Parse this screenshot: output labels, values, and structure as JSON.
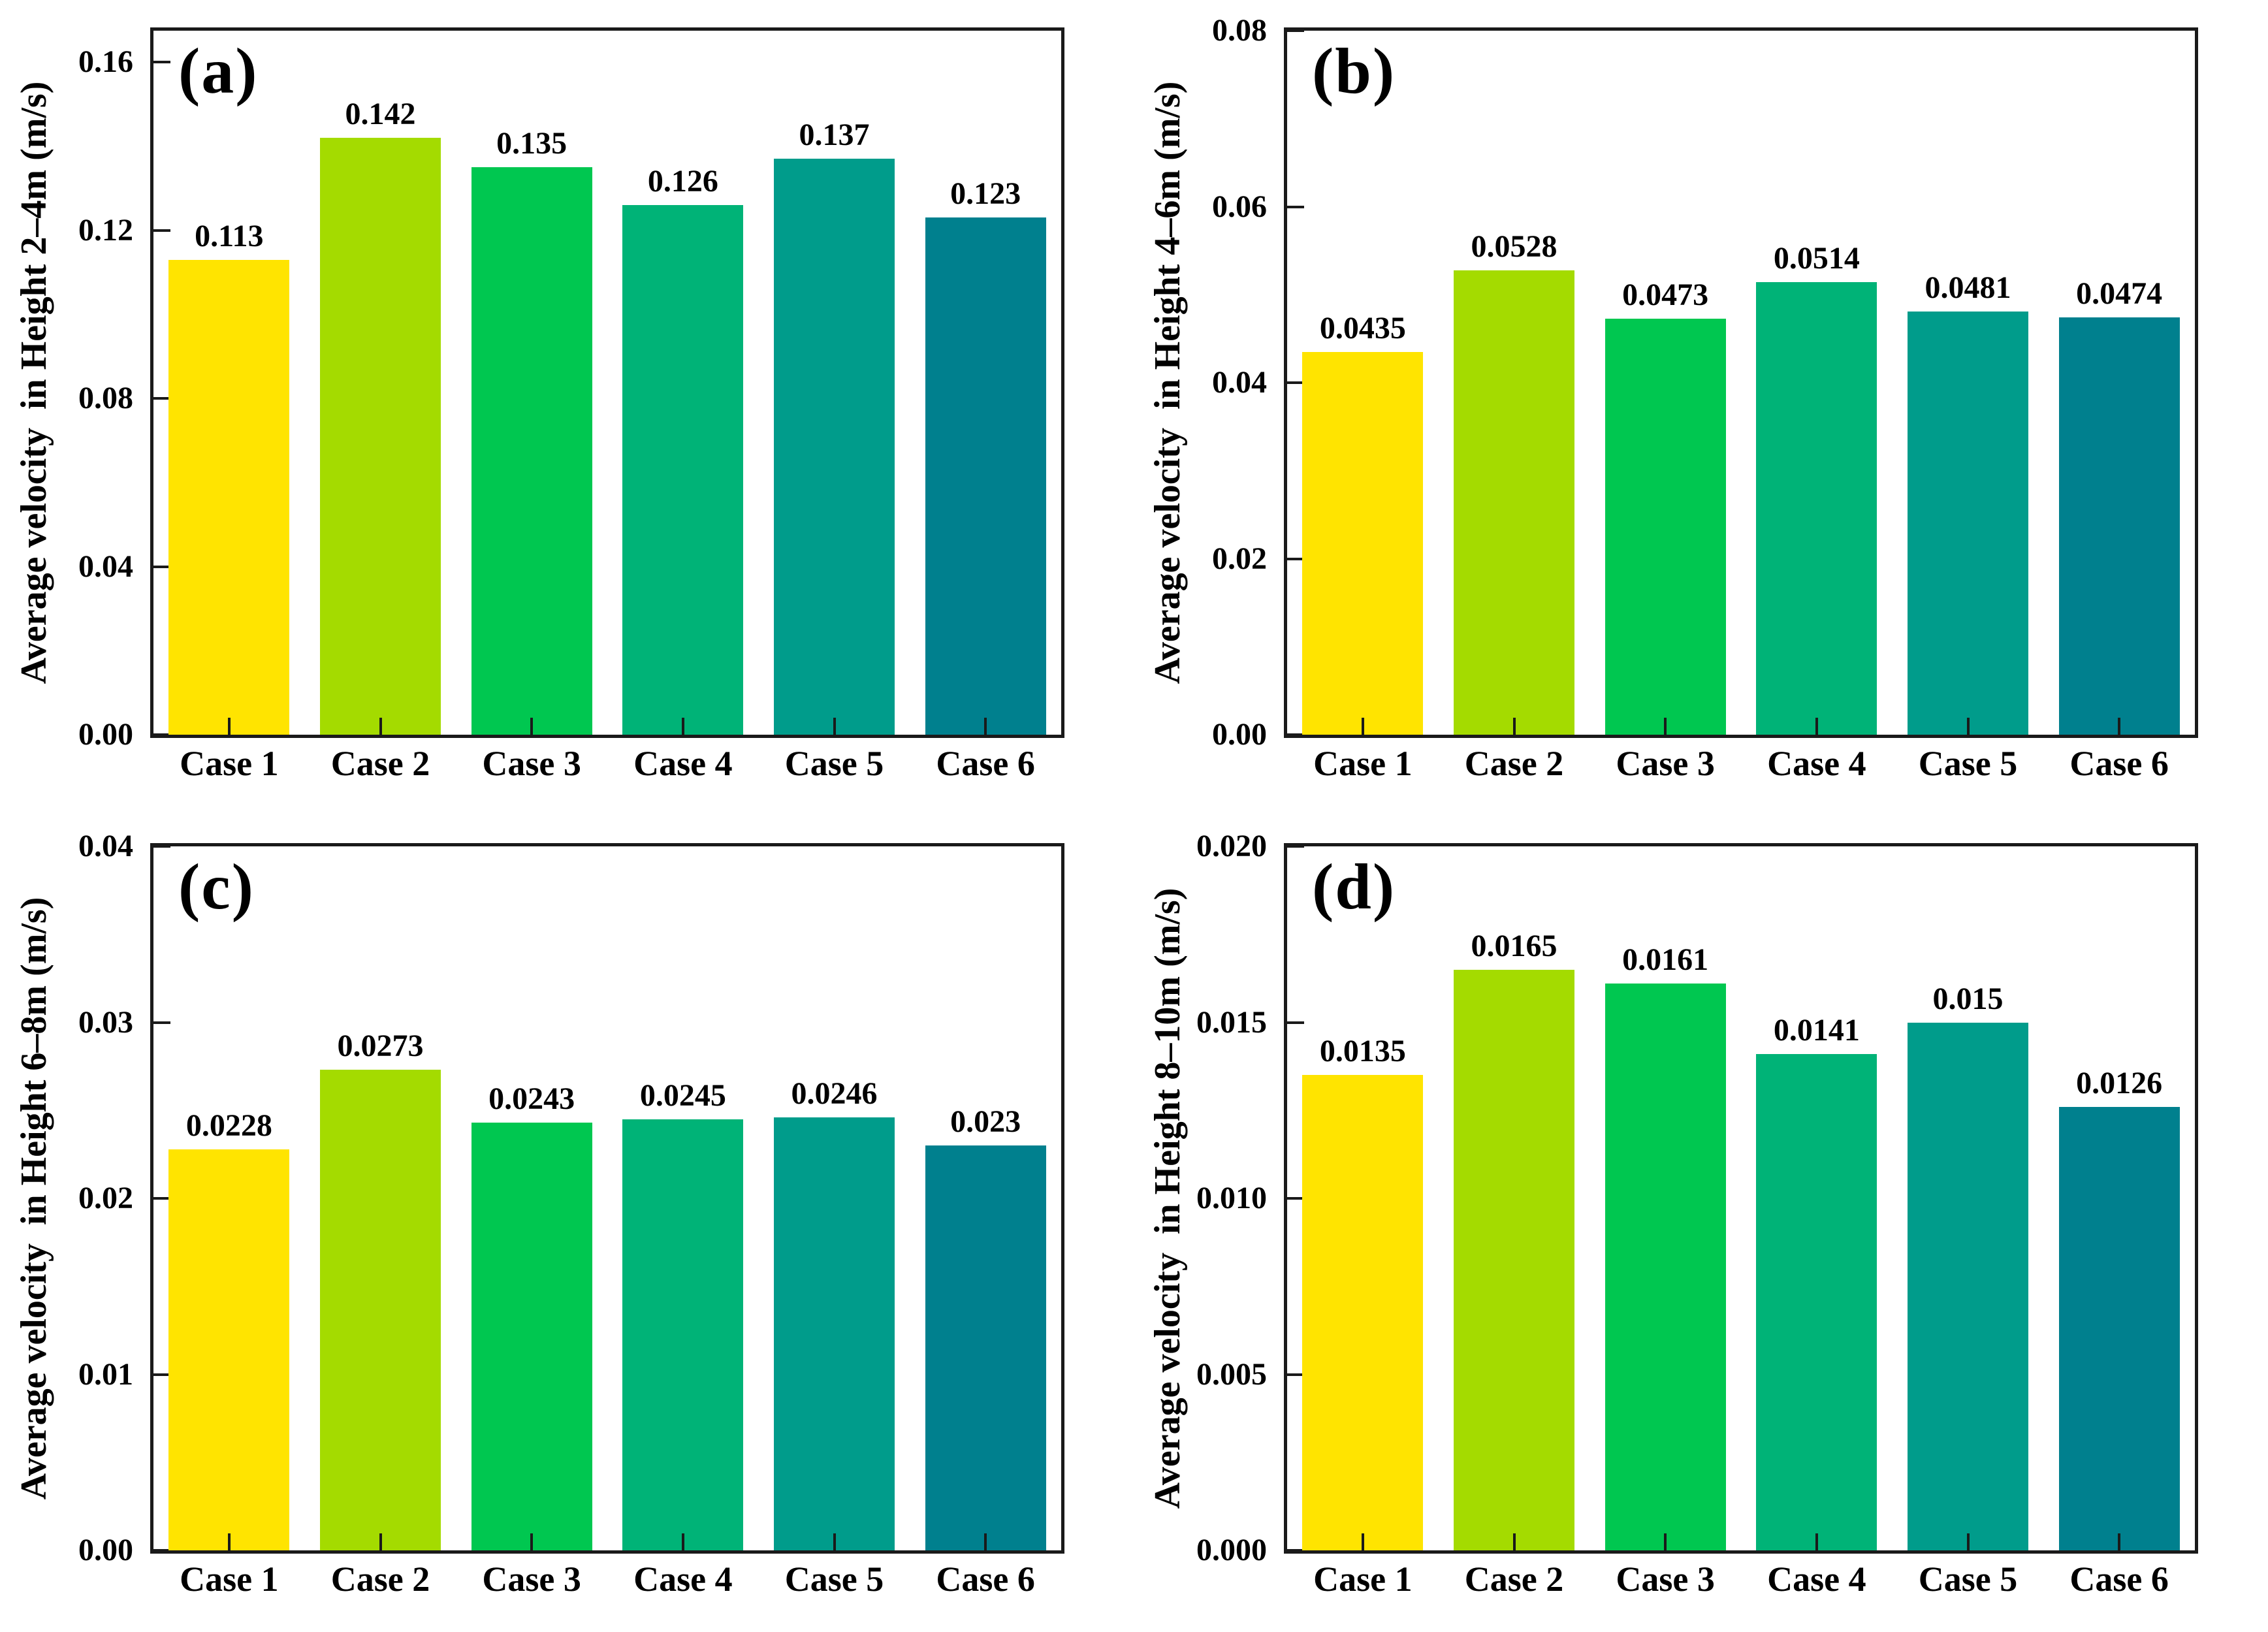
{
  "figure": {
    "background": "#ffffff",
    "axis_color": "#1a1a1a",
    "font_color": "#000000"
  },
  "bar_colors": [
    "#FFE400",
    "#A4DB00",
    "#00C750",
    "#00B377",
    "#009C8B",
    "#00808E"
  ],
  "chart_data": [
    {
      "type": "bar",
      "panel_label": "(a)",
      "ylabel": "Average velocity  in Height 2–4m (m/s)",
      "xlabel": "",
      "categories": [
        "Case 1",
        "Case 2",
        "Case 3",
        "Case 4",
        "Case 5",
        "Case 6"
      ],
      "values": [
        0.113,
        0.142,
        0.135,
        0.126,
        0.137,
        0.123
      ],
      "value_labels": [
        "0.113",
        "0.142",
        "0.135",
        "0.126",
        "0.137",
        "0.123"
      ],
      "ytick_labels": [
        "0.00",
        "0.04",
        "0.08",
        "0.12",
        "0.16"
      ],
      "ylim": [
        0,
        0.1675
      ],
      "grid": false,
      "legend": null
    },
    {
      "type": "bar",
      "panel_label": "(b)",
      "ylabel": "Average velocity  in Height 4–6m (m/s)",
      "xlabel": "",
      "categories": [
        "Case 1",
        "Case 2",
        "Case 3",
        "Case 4",
        "Case 5",
        "Case 6"
      ],
      "values": [
        0.0435,
        0.0528,
        0.0473,
        0.0514,
        0.0481,
        0.0474
      ],
      "value_labels": [
        "0.0435",
        "0.0528",
        "0.0473",
        "0.0514",
        "0.0481",
        "0.0474"
      ],
      "ytick_labels": [
        "0.00",
        "0.02",
        "0.04",
        "0.06",
        "0.08"
      ],
      "ylim": [
        0,
        0.08
      ],
      "grid": false,
      "legend": null
    },
    {
      "type": "bar",
      "panel_label": "(c)",
      "ylabel": "Average velocity  in Height 6–8m (m/s)",
      "xlabel": "",
      "categories": [
        "Case 1",
        "Case 2",
        "Case 3",
        "Case 4",
        "Case 5",
        "Case 6"
      ],
      "values": [
        0.0228,
        0.0273,
        0.0243,
        0.0245,
        0.0246,
        0.023
      ],
      "value_labels": [
        "0.0228",
        "0.0273",
        "0.0243",
        "0.0245",
        "0.0246",
        "0.023"
      ],
      "ytick_labels": [
        "0.00",
        "0.01",
        "0.02",
        "0.03",
        "0.04"
      ],
      "ylim": [
        0,
        0.04
      ],
      "grid": false,
      "legend": null
    },
    {
      "type": "bar",
      "panel_label": "(d)",
      "ylabel": "Average velocity  in Height 8–10m (m/s)",
      "xlabel": "",
      "categories": [
        "Case 1",
        "Case 2",
        "Case 3",
        "Case 4",
        "Case 5",
        "Case 6"
      ],
      "values": [
        0.0135,
        0.0165,
        0.0161,
        0.0141,
        0.015,
        0.0126
      ],
      "value_labels": [
        "0.0135",
        "0.0165",
        "0.0161",
        "0.0141",
        "0.015",
        "0.0126"
      ],
      "ytick_labels": [
        "0.000",
        "0.005",
        "0.010",
        "0.015",
        "0.020"
      ],
      "ylim": [
        0,
        0.02
      ],
      "grid": false,
      "legend": null
    }
  ]
}
